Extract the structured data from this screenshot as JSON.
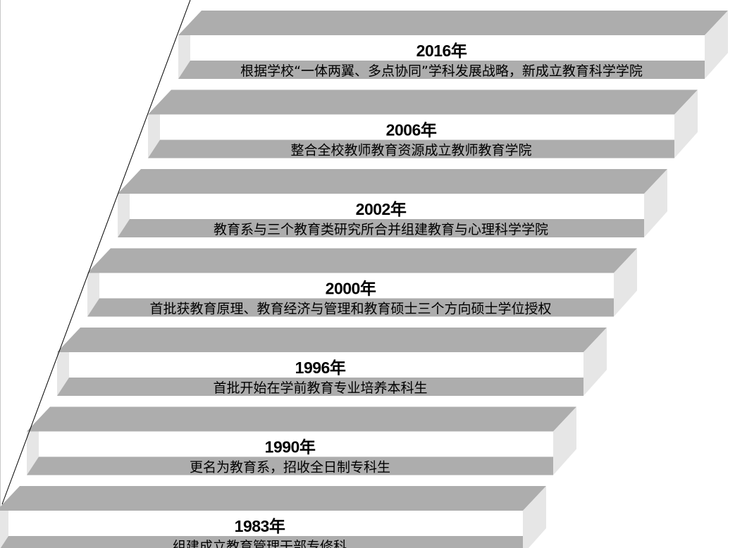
{
  "colors": {
    "top_face": "#adadad",
    "front_band": "#adadad",
    "side_face": "#e6e6e6",
    "white_band": "#ffffff",
    "line": "#000000"
  },
  "milestones": [
    {
      "year": "2016年",
      "text": "根据学校“一体两翼、多点协同”学科发展战略，新成立教育科学学院"
    },
    {
      "year": "2006年",
      "text": "整合全校教师教育资源成立教师教育学院"
    },
    {
      "year": "2002年",
      "text": "教育系与三个教育类研究所合并组建教育与心理科学学院"
    },
    {
      "year": "2000年",
      "text": "首批获教育原理、教育经济与管理和教育硕士三个方向硕士学位授权"
    },
    {
      "year": "1996年",
      "text": "首批开始在学前教育专业培养本科生"
    },
    {
      "year": "1990年",
      "text": "更名为教育系，招收全日制专科生"
    },
    {
      "year": "1983年",
      "text": "组建成立教育管理干部专修科"
    }
  ]
}
